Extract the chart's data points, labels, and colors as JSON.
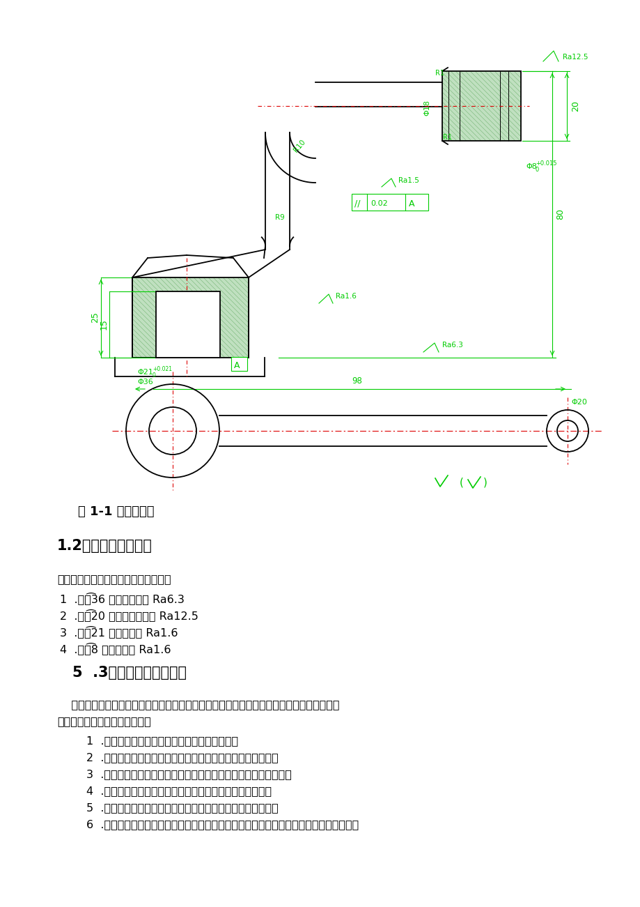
{
  "page_bg": "#ffffff",
  "fig_width": 9.2,
  "fig_height": 13.01,
  "drawing_color": "#00cc00",
  "line_color": "#000000",
  "cl_color": "#dd0000",
  "hatch_color": "#aaddaa",
  "figure_caption": "图 1-1 手把零件图",
  "section_title": "1.2零件技术条件分析",
  "section2_title": "5  .3零件结构工艺性分析",
  "para1": "手把共有四个加工表面，现分述如下：",
  "items1": [
    "1  .手把͡36 端面，粗糙度 Ra6.3",
    "2  .手把͡20 两端面，粗糙度 Ra12.5",
    "3  .手把͡21 孔，粗糙度 Ra1.6",
    "4  .手把͡8 孔，粗糙度 Ra1.6"
  ],
  "para2_1": "    零件的结构的工艺性是指所设计的零件在满足使用要求的前提下，制造的可行性与经济性。",
  "para2_2": "零件结构工艺性审查如下所述：",
  "items2": [
    "1  .避免设置倾斜的加工面，以便减少装夹次数。",
    "2  .改为通孔或扩大中间孔可减少装夹次数，保证孔的同轴度。",
    "3  .被加工表面设置在同一平面，可一次走刀加工，缩短调整时间。",
    "4  .避免内表面、内凹面的加工，利于提高效率，保证精度。",
    "5  .加工螺纹时应留有退刀槽，或具有螺纹尾扣，以方便退刀。",
    "6  .将支承面改为台阶式，将加工面铸出凸台、保留精加工面的必要长度，以减少加工面，"
  ]
}
